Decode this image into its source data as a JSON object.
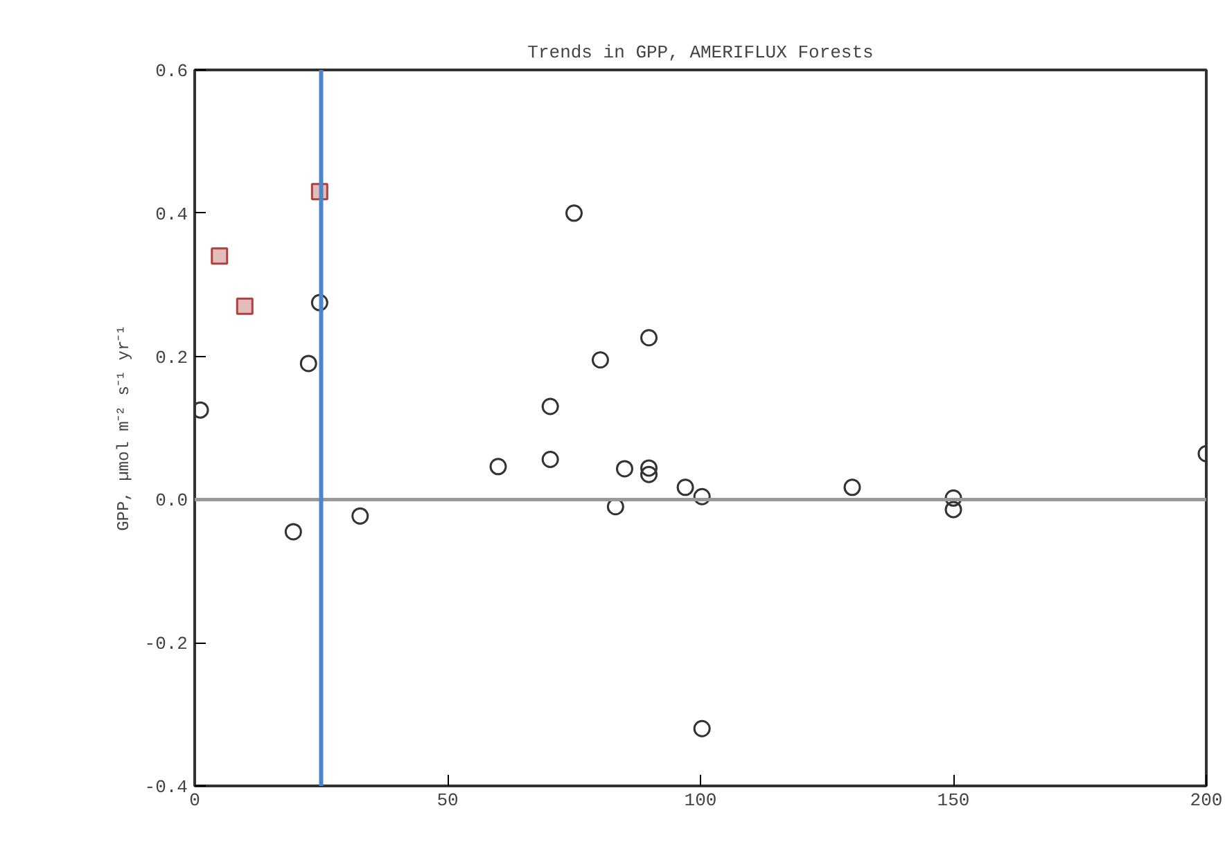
{
  "chart_data": {
    "type": "scatter",
    "title": "Trends in GPP, AMERIFLUX Forests",
    "ylabel": "GPP, µmol m⁻² s⁻¹ yr⁻¹",
    "xlim": [
      0,
      200
    ],
    "xticks": [
      0,
      50,
      100,
      150,
      200
    ],
    "ylim": [
      -0.4,
      0.6
    ],
    "yticks": [
      {
        "value": -0.4,
        "label": "-0.4"
      },
      {
        "value": -0.2,
        "label": "-0.2"
      },
      {
        "value": 0,
        "label": "0.0"
      },
      {
        "value": 0.2,
        "label": "0.2"
      },
      {
        "value": 0.4,
        "label": "0.4"
      },
      {
        "value": 0.6,
        "label": "0.6"
      }
    ],
    "grid": false,
    "series": [
      {
        "color": "#333333",
        "marker": "circle",
        "x": [
          1.1,
          22.5,
          24.7,
          19.5,
          32.7,
          75,
          60,
          70.3,
          70.3,
          80.2,
          89.8,
          85,
          89.8,
          89.8,
          83.2,
          97,
          100.3,
          100.3,
          130,
          150,
          150,
          200
        ],
        "values": [
          0.125,
          0.19,
          0.275,
          -0.045,
          -0.023,
          0.4,
          0.046,
          0.056,
          0.13,
          0.195,
          0.226,
          0.043,
          0.044,
          0.035,
          -0.01,
          0.017,
          0.004,
          -0.32,
          0.017,
          0.002,
          -0.014,
          0.064
        ]
      },
      {
        "color": "#b04040",
        "marker": "square",
        "x": [
          4.9,
          9.9,
          24.7
        ],
        "values": [
          0.34,
          0.27,
          0.43
        ]
      }
    ],
    "ref_lines": [
      {
        "axis": "y",
        "value": 0,
        "color": "#999999"
      },
      {
        "axis": "x",
        "value": 25,
        "color": "#4a86c8"
      }
    ]
  }
}
